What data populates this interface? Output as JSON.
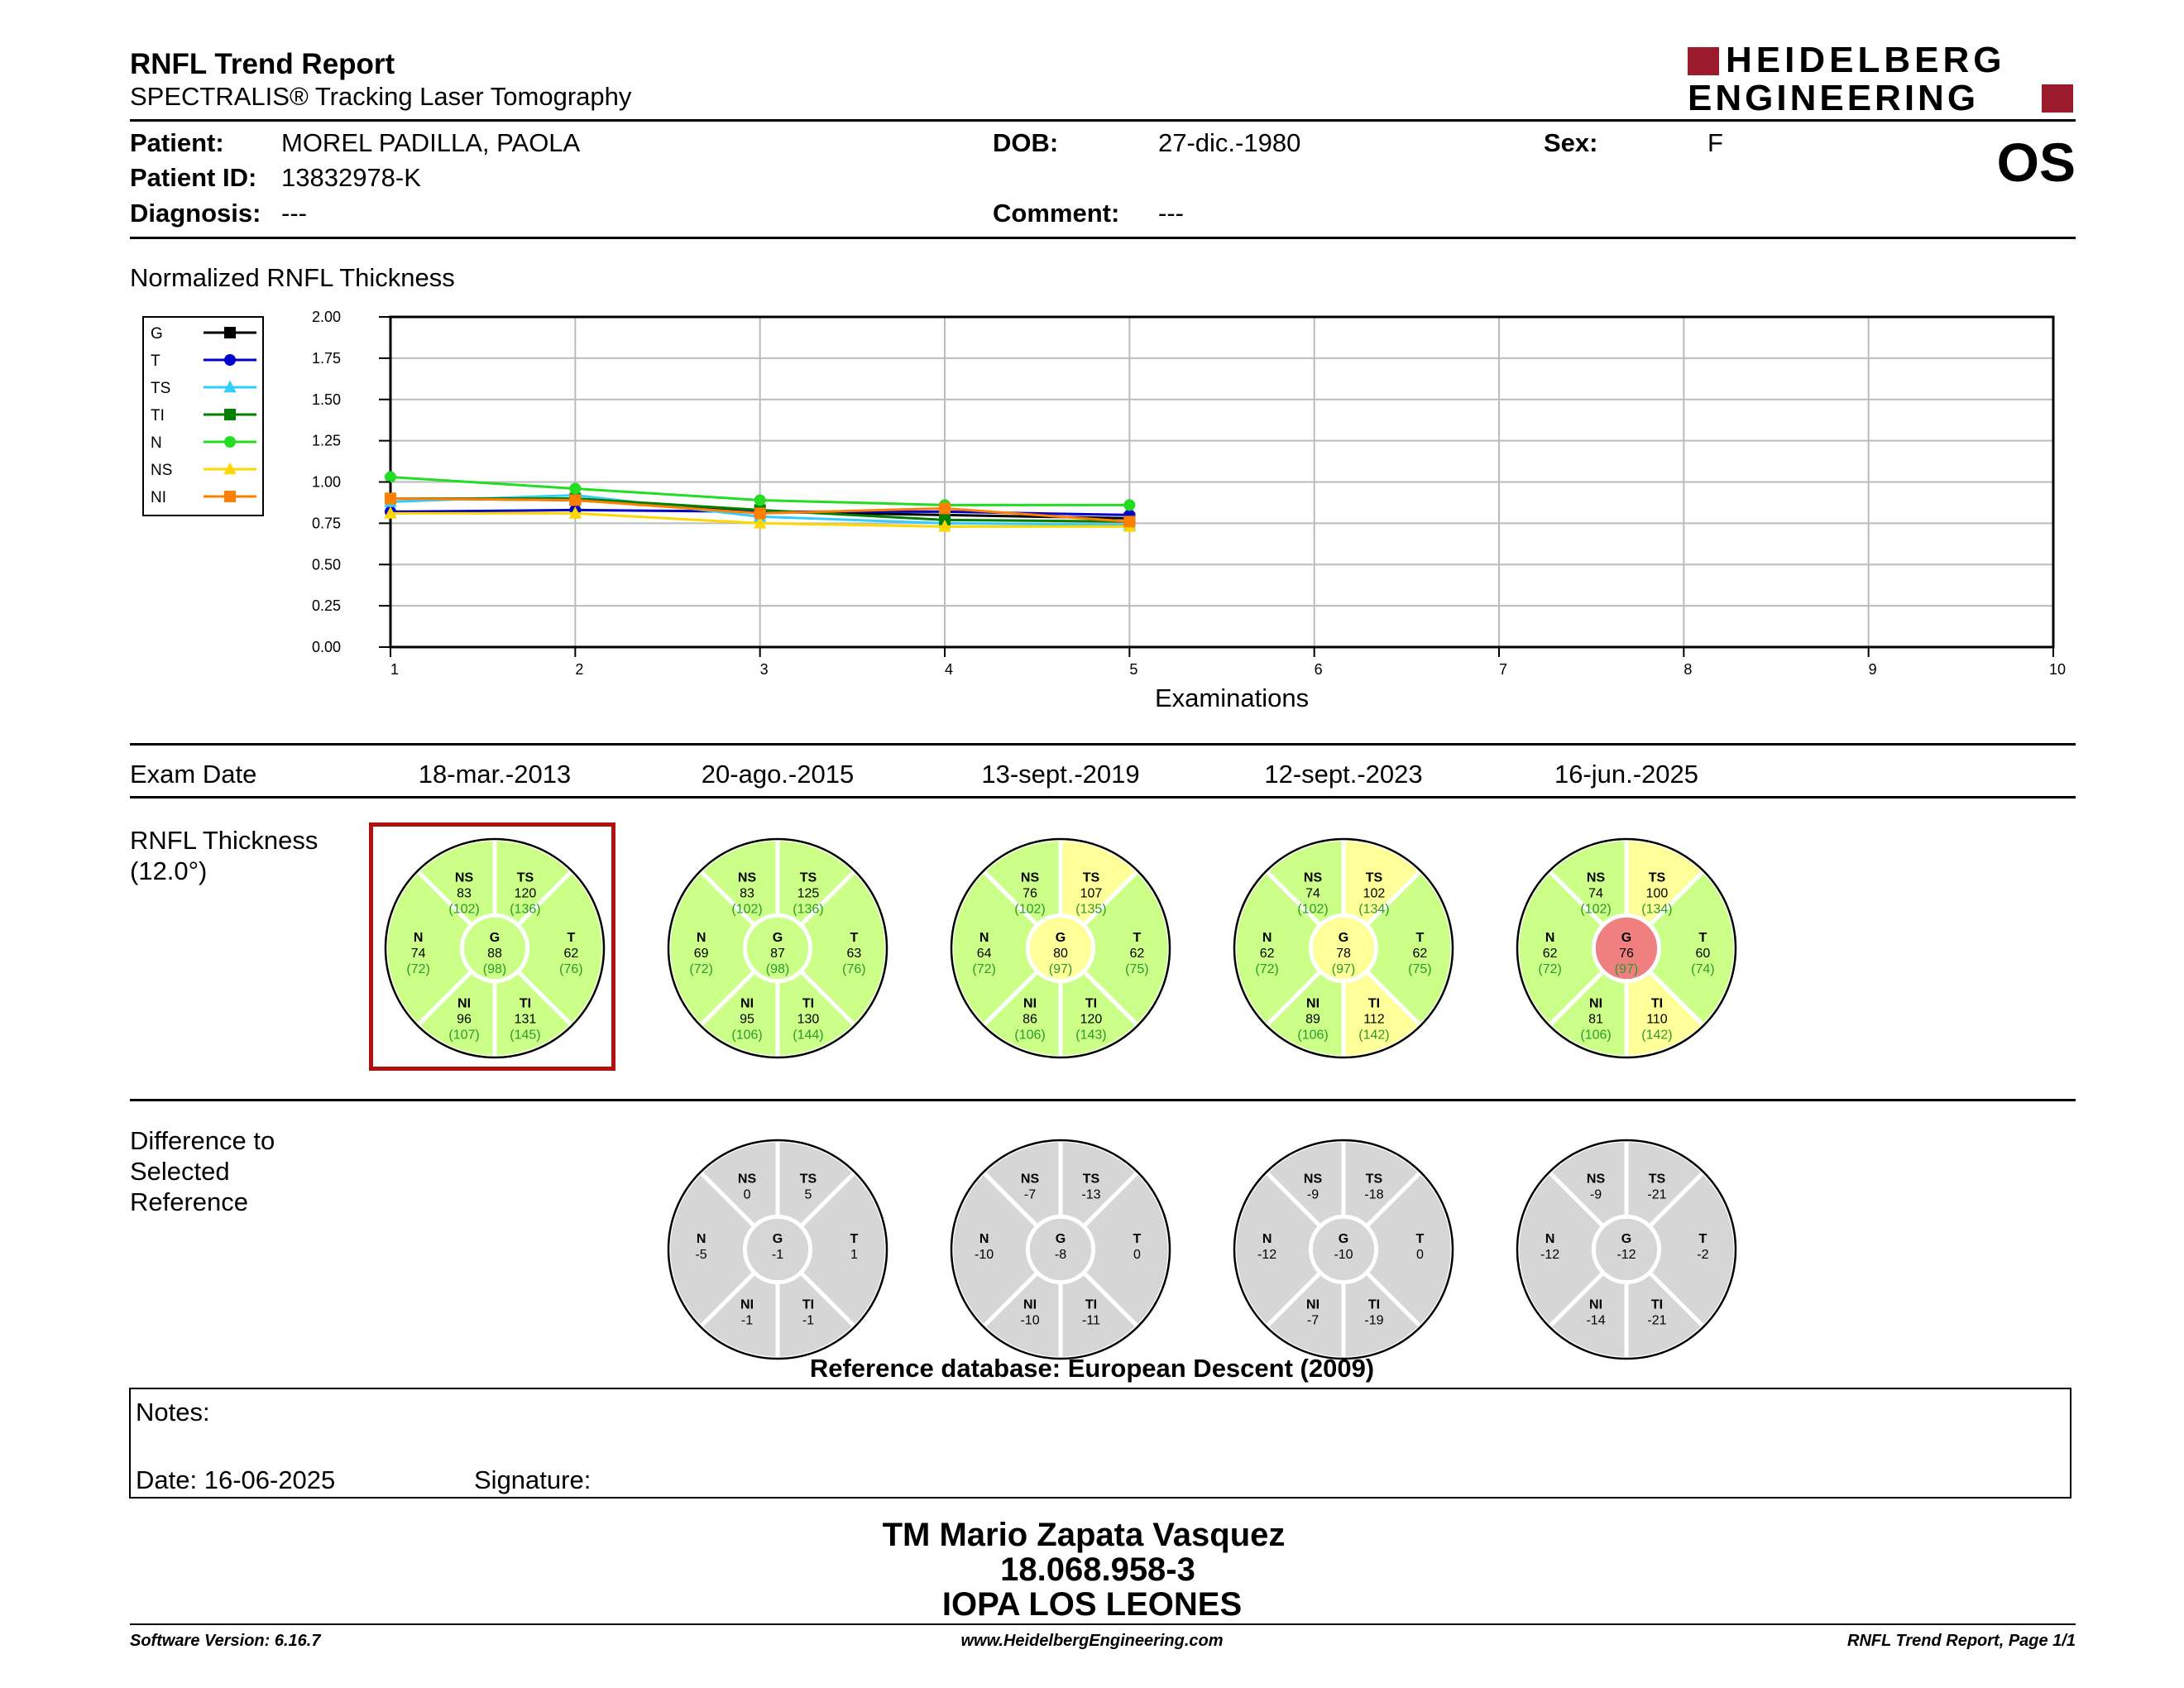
{
  "header": {
    "title": "RNFL Trend Report",
    "subtitle": "SPECTRALIS® Tracking Laser Tomography",
    "logo_line1": "HEIDELBERG",
    "logo_line2": "ENGINEERING",
    "logo_color": "#9b1b2d"
  },
  "patient": {
    "patient_label": "Patient:",
    "patient_value": "MOREL PADILLA, PAOLA",
    "id_label": "Patient ID:",
    "id_value": "13832978-K",
    "diagnosis_label": "Diagnosis:",
    "diagnosis_value": "---",
    "dob_label": "DOB:",
    "dob_value": "27-dic.-1980",
    "comment_label": "Comment:",
    "comment_value": "---",
    "sex_label": "Sex:",
    "sex_value": "F",
    "eye": "OS"
  },
  "chart_section_title": "Normalized RNFL Thickness",
  "chart_data": {
    "type": "line",
    "xlabel": "Examinations",
    "ylabel": "",
    "x_ticks": [
      1,
      2,
      3,
      4,
      5,
      6,
      7,
      8,
      9,
      10
    ],
    "y_ticks": [
      "0.00",
      "0.25",
      "0.50",
      "0.75",
      "1.00",
      "1.25",
      "1.50",
      "1.75",
      "2.00"
    ],
    "xlim": [
      1,
      10
    ],
    "ylim": [
      0,
      2
    ],
    "grid": true,
    "legend_position": "left",
    "x": [
      1,
      2,
      3,
      4,
      5
    ],
    "series": [
      {
        "name": "G",
        "color": "#000000",
        "marker": "square",
        "values": [
          0.9,
          0.89,
          0.82,
          0.8,
          0.78
        ]
      },
      {
        "name": "T",
        "color": "#0000cc",
        "marker": "circle",
        "values": [
          0.82,
          0.83,
          0.82,
          0.82,
          0.8
        ]
      },
      {
        "name": "TS",
        "color": "#33ccff",
        "marker": "triangle",
        "values": [
          0.88,
          0.92,
          0.79,
          0.75,
          0.74
        ]
      },
      {
        "name": "TI",
        "color": "#008000",
        "marker": "square",
        "values": [
          0.9,
          0.9,
          0.83,
          0.77,
          0.76
        ]
      },
      {
        "name": "N",
        "color": "#22dd22",
        "marker": "circle",
        "values": [
          1.03,
          0.96,
          0.89,
          0.86,
          0.86
        ]
      },
      {
        "name": "NS",
        "color": "#ffd700",
        "marker": "triangle",
        "values": [
          0.81,
          0.81,
          0.75,
          0.73,
          0.73
        ]
      },
      {
        "name": "NI",
        "color": "#ff8000",
        "marker": "square",
        "values": [
          0.9,
          0.89,
          0.81,
          0.84,
          0.76
        ]
      }
    ]
  },
  "exam_date_label": "Exam Date",
  "exam_dates": [
    "18-mar.-2013",
    "20-ago.-2015",
    "13-sept.-2019",
    "12-sept.-2023",
    "16-jun.-2025"
  ],
  "rnfl_section_title_1": "RNFL Thickness",
  "rnfl_section_title_2": "(12.0°)",
  "colors": {
    "within_normal": "#ccff88",
    "borderline": "#ffff99",
    "outside_normal": "#f08080",
    "difference": "#d6d6d6",
    "reference_box": "#b01010",
    "normative_text": "#2a9a2a"
  },
  "rnfl_thickness": [
    {
      "G": {
        "v": "88",
        "n": "(98)",
        "s": "wn"
      },
      "T": {
        "v": "62",
        "n": "(76)",
        "s": "wn"
      },
      "TS": {
        "v": "120",
        "n": "(136)",
        "s": "wn"
      },
      "TI": {
        "v": "131",
        "n": "(145)",
        "s": "wn"
      },
      "N": {
        "v": "74",
        "n": "(72)",
        "s": "wn"
      },
      "NS": {
        "v": "83",
        "n": "(102)",
        "s": "wn"
      },
      "NI": {
        "v": "96",
        "n": "(107)",
        "s": "wn"
      }
    },
    {
      "G": {
        "v": "87",
        "n": "(98)",
        "s": "wn"
      },
      "T": {
        "v": "63",
        "n": "(76)",
        "s": "wn"
      },
      "TS": {
        "v": "125",
        "n": "(136)",
        "s": "wn"
      },
      "TI": {
        "v": "130",
        "n": "(144)",
        "s": "wn"
      },
      "N": {
        "v": "69",
        "n": "(72)",
        "s": "wn"
      },
      "NS": {
        "v": "83",
        "n": "(102)",
        "s": "wn"
      },
      "NI": {
        "v": "95",
        "n": "(106)",
        "s": "wn"
      }
    },
    {
      "G": {
        "v": "80",
        "n": "(97)",
        "s": "bl"
      },
      "T": {
        "v": "62",
        "n": "(75)",
        "s": "wn"
      },
      "TS": {
        "v": "107",
        "n": "(135)",
        "s": "bl"
      },
      "TI": {
        "v": "120",
        "n": "(143)",
        "s": "wn"
      },
      "N": {
        "v": "64",
        "n": "(72)",
        "s": "wn"
      },
      "NS": {
        "v": "76",
        "n": "(102)",
        "s": "wn"
      },
      "NI": {
        "v": "86",
        "n": "(106)",
        "s": "wn"
      }
    },
    {
      "G": {
        "v": "78",
        "n": "(97)",
        "s": "bl"
      },
      "T": {
        "v": "62",
        "n": "(75)",
        "s": "wn"
      },
      "TS": {
        "v": "102",
        "n": "(134)",
        "s": "bl"
      },
      "TI": {
        "v": "112",
        "n": "(142)",
        "s": "bl"
      },
      "N": {
        "v": "62",
        "n": "(72)",
        "s": "wn"
      },
      "NS": {
        "v": "74",
        "n": "(102)",
        "s": "wn"
      },
      "NI": {
        "v": "89",
        "n": "(106)",
        "s": "wn"
      }
    },
    {
      "G": {
        "v": "76",
        "n": "(97)",
        "s": "on"
      },
      "T": {
        "v": "60",
        "n": "(74)",
        "s": "wn"
      },
      "TS": {
        "v": "100",
        "n": "(134)",
        "s": "bl"
      },
      "TI": {
        "v": "110",
        "n": "(142)",
        "s": "bl"
      },
      "N": {
        "v": "62",
        "n": "(72)",
        "s": "wn"
      },
      "NS": {
        "v": "74",
        "n": "(102)",
        "s": "wn"
      },
      "NI": {
        "v": "81",
        "n": "(106)",
        "s": "wn"
      }
    }
  ],
  "diff_section_title_1": "Difference to",
  "diff_section_title_2": "Selected",
  "diff_section_title_3": "Reference",
  "differences": [
    null,
    {
      "G": "-1",
      "T": "1",
      "TS": "5",
      "TI": "-1",
      "N": "-5",
      "NS": "0",
      "NI": "-1"
    },
    {
      "G": "-8",
      "T": "0",
      "TS": "-13",
      "TI": "-11",
      "N": "-10",
      "NS": "-7",
      "NI": "-10"
    },
    {
      "G": "-10",
      "T": "0",
      "TS": "-18",
      "TI": "-19",
      "N": "-12",
      "NS": "-9",
      "NI": "-7"
    },
    {
      "G": "-12",
      "T": "-2",
      "TS": "-21",
      "TI": "-21",
      "N": "-12",
      "NS": "-9",
      "NI": "-14"
    }
  ],
  "reference_db": "Reference database: European Descent (2009)",
  "notes": {
    "notes_label": "Notes:",
    "date_label": "Date: 16-06-2025",
    "signature_label": "Signature:"
  },
  "signature_stamp": {
    "line1": "TM Mario Zapata Vasquez",
    "line2": "18.068.958-3",
    "line3": "IOPA LOS LEONES"
  },
  "footer": {
    "software": "Software Version: 6.16.7",
    "website": "www.HeidelbergEngineering.com",
    "page": "RNFL Trend Report, Page 1/1"
  }
}
